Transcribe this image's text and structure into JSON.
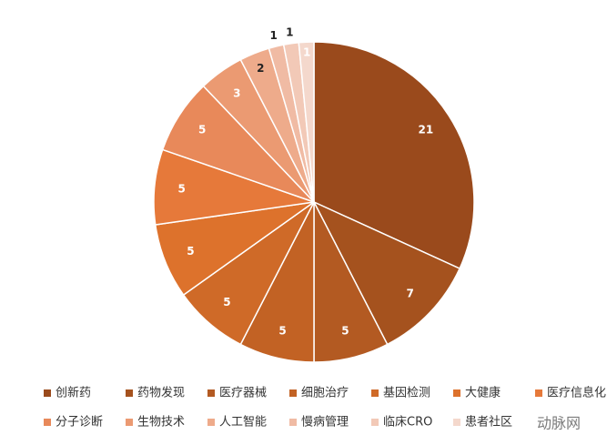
{
  "chart_data": {
    "type": "pie",
    "categories": [
      "创新药",
      "药物发现",
      "医疗器械",
      "细胞治疗",
      "基因检测",
      "大健康",
      "医疗信息化",
      "分子诊断",
      "生物技术",
      "人工智能",
      "慢病管理",
      "临床CRO",
      "患者社区"
    ],
    "values": [
      21,
      7,
      5,
      5,
      5,
      5,
      5,
      5,
      3,
      2,
      1,
      1,
      1
    ],
    "colors": [
      "#9a4a1c",
      "#a5521e",
      "#b35a22",
      "#c26224",
      "#cf6a28",
      "#dd722c",
      "#e6793a",
      "#e8895a",
      "#eb9a72",
      "#eeab8b",
      "#f0bba4",
      "#f2c9b7",
      "#f4d8cc"
    ],
    "legend": "bottom",
    "watermark": "动脉网"
  }
}
